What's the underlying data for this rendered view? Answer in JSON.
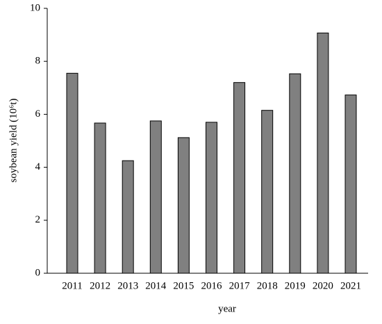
{
  "chart_data": {
    "type": "bar",
    "x_label": "year",
    "y_label": "soybean yield (10⁶t)",
    "categories": [
      "2011",
      "2012",
      "2013",
      "2014",
      "2015",
      "2016",
      "2017",
      "2018",
      "2019",
      "2020",
      "2021"
    ],
    "values": [
      7.55,
      5.67,
      4.25,
      5.75,
      5.12,
      5.7,
      7.2,
      6.15,
      7.53,
      9.07,
      6.73
    ],
    "color": "#808080",
    "ylim": [
      0,
      10
    ],
    "yticks": [
      0,
      2,
      4,
      6,
      8,
      10
    ],
    "grid": false
  }
}
